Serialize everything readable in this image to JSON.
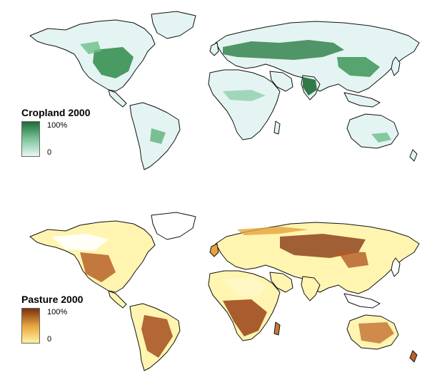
{
  "maps": {
    "cropland": {
      "title": "Cropland 2000",
      "legend_max": "100%",
      "legend_min": "0",
      "colors": {
        "low": "#e9f7f6",
        "mid": "#7cc39a",
        "high": "#1d6b36"
      }
    },
    "pasture": {
      "title": "Pasture 2000",
      "legend_max": "100%",
      "legend_min": "0",
      "colors": {
        "low": "#fff3a0",
        "mid": "#e6a43c",
        "high": "#7a2f12"
      }
    }
  }
}
